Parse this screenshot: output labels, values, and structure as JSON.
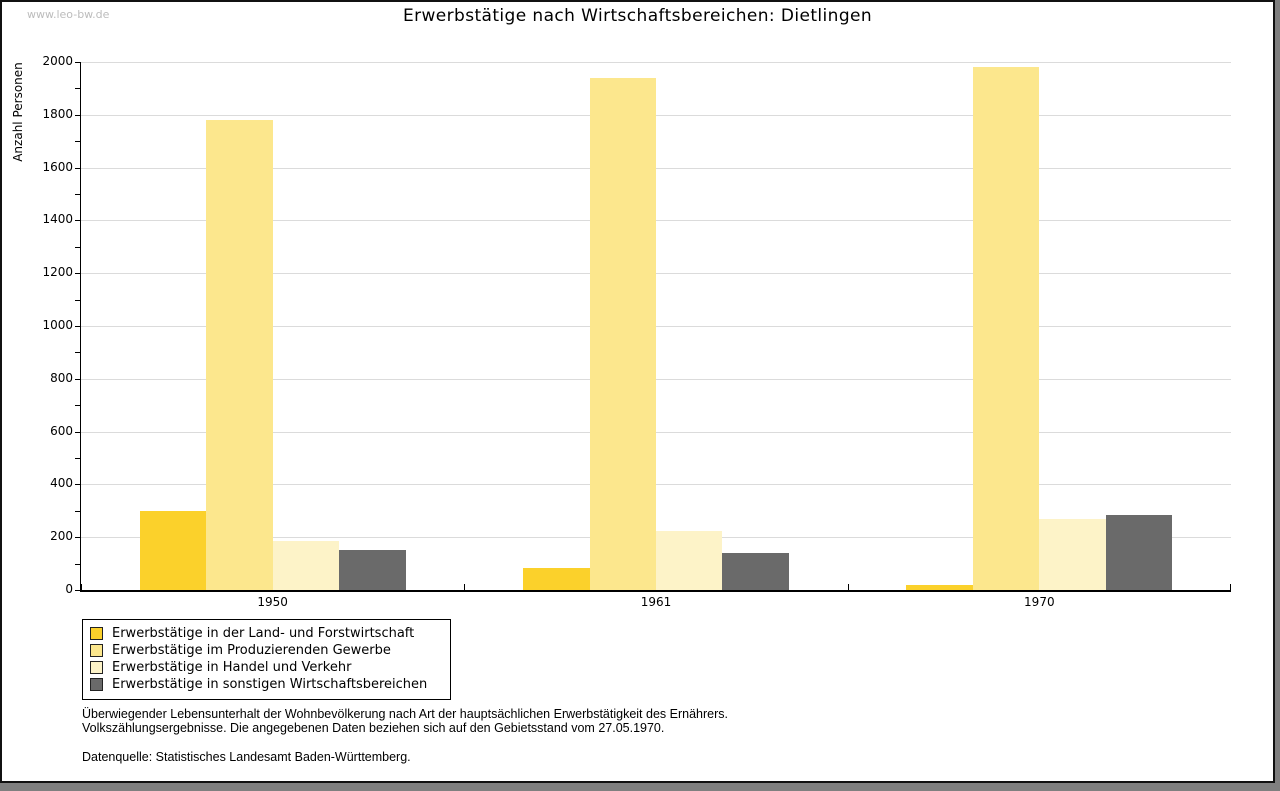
{
  "page": {
    "watermark": "www.leo-bw.de",
    "title": "Erwerbstätige nach Wirtschaftsbereichen: Dietlingen"
  },
  "chart_data": {
    "type": "bar",
    "title": "Erwerbstätige nach Wirtschaftsbereichen: Dietlingen",
    "xlabel": "",
    "ylabel": "Anzahl Personen",
    "ylim": [
      0,
      2000
    ],
    "ytick_step": 200,
    "yticks": [
      0,
      200,
      400,
      600,
      800,
      1000,
      1200,
      1400,
      1600,
      1800,
      2000
    ],
    "minor_tick_step": 100,
    "grid": true,
    "legend_position": "bottom-left",
    "categories": [
      "1950",
      "1961",
      "1970"
    ],
    "series": [
      {
        "name": "Erwerbstätige in der Land- und Forstwirtschaft",
        "color": "#FBD12B",
        "values": [
          300,
          85,
          20
        ]
      },
      {
        "name": "Erwerbstätige im Produzierenden Gewerbe",
        "color": "#FCE78D",
        "values": [
          1780,
          1940,
          1980
        ]
      },
      {
        "name": "Erwerbstätige in Handel und Verkehr",
        "color": "#FDF3C8",
        "values": [
          185,
          225,
          270
        ]
      },
      {
        "name": "Erwerbstätige in sonstigen Wirtschaftsbereichen",
        "color": "#6A6A6A",
        "values": [
          150,
          140,
          285
        ]
      }
    ]
  },
  "footer": {
    "line1": "Überwiegender Lebensunterhalt der Wohnbevölkerung nach Art der hauptsächlichen Erwerbstätigkeit des Ernährers.",
    "line2": "Volkszählungsergebnisse. Die angegebenen Daten beziehen sich auf den Gebietsstand vom 27.05.1970.",
    "source": "Datenquelle: Statistisches Landesamt Baden-Württemberg."
  },
  "colors": {
    "page_shadow": "#7f7f7f",
    "card_border": "#111111",
    "gridline": "#dbdbdb",
    "axis": "#000000",
    "watermark": "#bcbcbc"
  }
}
